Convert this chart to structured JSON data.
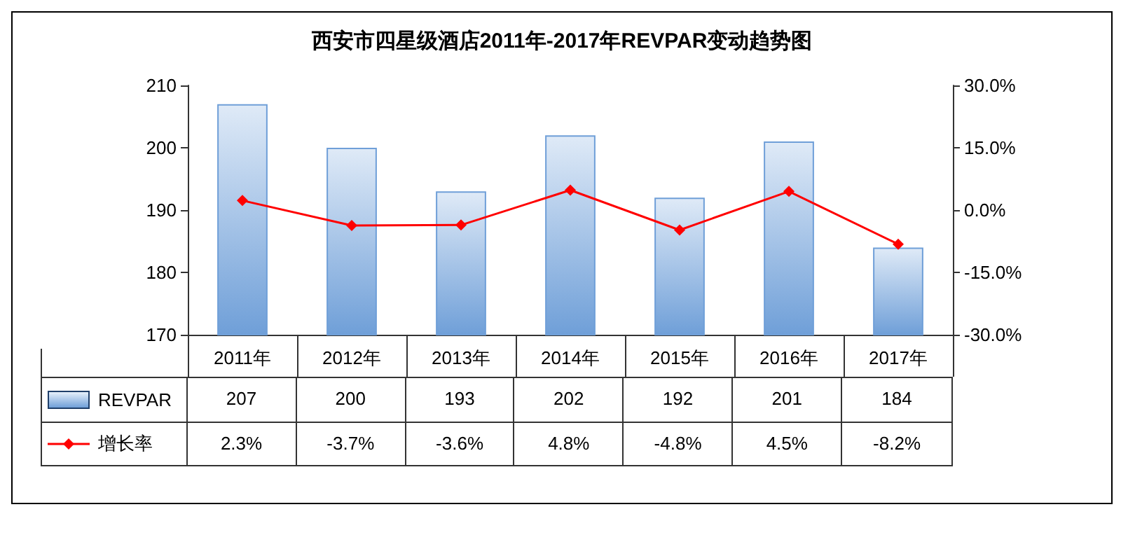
{
  "chart_data": {
    "type": "bar",
    "title": "西安市四星级酒店2011年-2017年REVPAR变动趋势图",
    "categories": [
      "2011年",
      "2012年",
      "2013年",
      "2014年",
      "2015年",
      "2016年",
      "2017年"
    ],
    "series": [
      {
        "name": "REVPAR",
        "color": "#6f9fd8",
        "values": [
          207,
          200,
          193,
          202,
          192,
          201,
          184
        ],
        "value_labels": [
          "207",
          "200",
          "193",
          "202",
          "192",
          "201",
          "184"
        ]
      },
      {
        "name": "增长率",
        "type": "line",
        "axis": "y2",
        "color": "#ff0000",
        "values": [
          2.3,
          -3.7,
          -3.6,
          4.8,
          -4.8,
          4.5,
          -8.2
        ],
        "value_labels": [
          "2.3%",
          "-3.7%",
          "-3.6%",
          "4.8%",
          "-4.8%",
          "4.5%",
          "-8.2%"
        ]
      }
    ],
    "ylim": [
      170,
      210
    ],
    "yticks": [
      170,
      180,
      190,
      200,
      210
    ],
    "y2lim": [
      -30,
      30
    ],
    "y2ticks": [
      {
        "value": -30,
        "label": "-30.0%"
      },
      {
        "value": -15,
        "label": "-15.0%"
      },
      {
        "value": 0,
        "label": "0.0%"
      },
      {
        "value": 15,
        "label": "15.0%"
      },
      {
        "value": 30,
        "label": "30.0%"
      }
    ],
    "legend": "bottom left",
    "marker": "diamond",
    "line_style": "solid"
  }
}
